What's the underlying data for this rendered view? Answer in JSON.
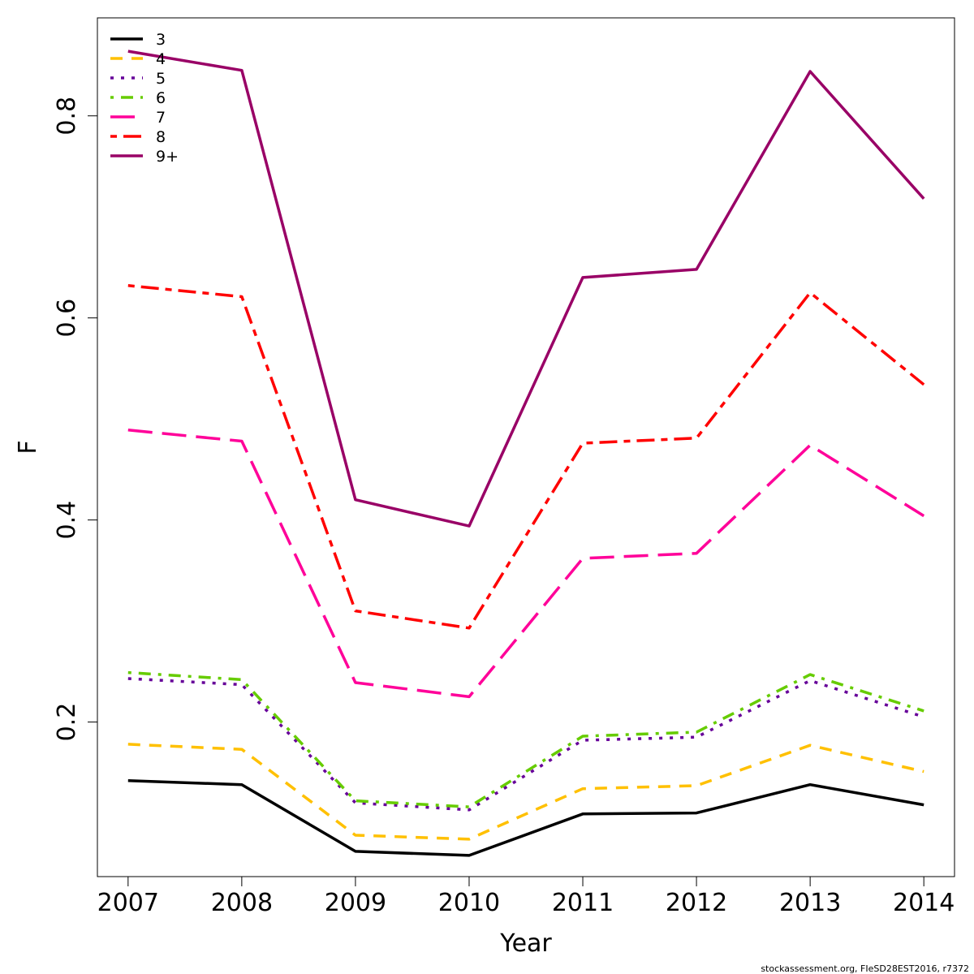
{
  "chart_data": {
    "type": "line",
    "xlabel": "Year",
    "ylabel": "F",
    "x": [
      2007,
      2008,
      2009,
      2010,
      2011,
      2012,
      2013,
      2014
    ],
    "xlim": [
      2006.73,
      2014.27
    ],
    "ylim": [
      0.047,
      0.897
    ],
    "yticks": [
      0.2,
      0.4,
      0.6,
      0.8
    ],
    "legend_position": "top-left",
    "grid": false,
    "series": [
      {
        "name": "3",
        "color": "#000000",
        "dash": "solid",
        "values": [
          0.142,
          0.138,
          0.072,
          0.068,
          0.109,
          0.11,
          0.138,
          0.118
        ]
      },
      {
        "name": "4",
        "color": "#FFC000",
        "dash": "dashed",
        "values": [
          0.178,
          0.173,
          0.088,
          0.084,
          0.134,
          0.137,
          0.177,
          0.151
        ]
      },
      {
        "name": "5",
        "color": "#660099",
        "dash": "dotted",
        "values": [
          0.243,
          0.237,
          0.12,
          0.113,
          0.182,
          0.185,
          0.241,
          0.205
        ]
      },
      {
        "name": "6",
        "color": "#66CC00",
        "dash": "dotdash",
        "values": [
          0.249,
          0.242,
          0.122,
          0.116,
          0.186,
          0.19,
          0.247,
          0.211
        ]
      },
      {
        "name": "7",
        "color": "#FF0099",
        "dash": "longdash",
        "values": [
          0.489,
          0.478,
          0.239,
          0.225,
          0.362,
          0.367,
          0.474,
          0.404
        ]
      },
      {
        "name": "8",
        "color": "#FF0000",
        "dash": "twodash",
        "values": [
          0.632,
          0.621,
          0.31,
          0.293,
          0.476,
          0.481,
          0.625,
          0.534
        ]
      },
      {
        "name": "9+",
        "color": "#990066",
        "dash": "solid",
        "values": [
          0.864,
          0.845,
          0.42,
          0.394,
          0.64,
          0.648,
          0.844,
          0.718
        ]
      }
    ]
  },
  "footer": {
    "credit": "stockassessment.org, FIeSD28EST2016, r7372"
  }
}
